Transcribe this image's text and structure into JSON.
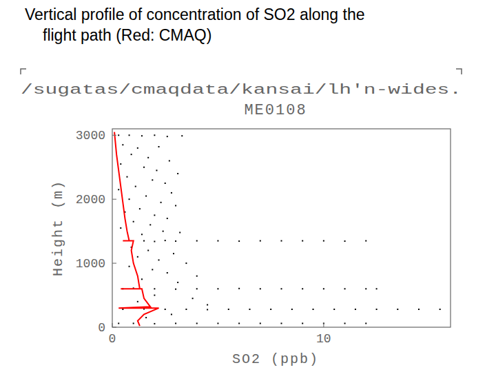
{
  "chart_data": {
    "type": "scatter",
    "title": "Vertical profile of concentration of SO2 along the flight path (Red: CMAQ)",
    "annotations": [
      "/sugatas/cmaqdata/kansai/lh'n-wides.",
      "ME0108"
    ],
    "x_label": "SO2 (ppb)",
    "y_label": "Height (m)",
    "xlim": [
      0,
      16
    ],
    "ylim": [
      0,
      3100
    ],
    "xticks": [
      0,
      10
    ],
    "yticks": [
      0,
      1000,
      2000,
      3000
    ],
    "grid": false,
    "series": [
      {
        "type": "scatter",
        "color": "#000000",
        "marker": "dot",
        "x": [
          1.5,
          2,
          2.5,
          3,
          4,
          5,
          6,
          7,
          8,
          9,
          10,
          11,
          12,
          0.5,
          1,
          2,
          3,
          4,
          5,
          6,
          7,
          8,
          9,
          10,
          11,
          12,
          12.5,
          0.5,
          1.5,
          2.5,
          3.5,
          4.5,
          5.5,
          6.5,
          7.5,
          8.5,
          9.5,
          10.5,
          11.5,
          12.5,
          13.5,
          14.5,
          15.5,
          0.3,
          1,
          2,
          3,
          4,
          5,
          6,
          7,
          8,
          9,
          10,
          11,
          12,
          0.3,
          0.8,
          1.4,
          2,
          2.6,
          3.3,
          0.5,
          1.2,
          2.2,
          0.9,
          1.7,
          2.7,
          0.4,
          1.5,
          2.1,
          3.1,
          0.7,
          1.9,
          2.5,
          1.1,
          0.3,
          2.8,
          1.6,
          0.8,
          2.3,
          3.0,
          1.3,
          0.6,
          2.0,
          2.6,
          1.0,
          1.8,
          0.4,
          2.4,
          1.4,
          3.2,
          0.9,
          1.7,
          2.9,
          1.2,
          2.2,
          3.5,
          0.8,
          1.9,
          2.6,
          4.0,
          1.4,
          3.1,
          2.0,
          3.8,
          1.2,
          4.5,
          2.8,
          1.6
        ],
        "values": [
          1350,
          1340,
          1355,
          1345,
          1350,
          1350,
          1345,
          1350,
          1350,
          1350,
          1350,
          1345,
          1350,
          600,
          610,
          600,
          595,
          600,
          600,
          605,
          600,
          600,
          600,
          600,
          600,
          600,
          600,
          280,
          285,
          280,
          280,
          275,
          280,
          280,
          280,
          280,
          280,
          280,
          280,
          280,
          280,
          280,
          280,
          60,
          60,
          55,
          60,
          60,
          60,
          60,
          60,
          60,
          60,
          60,
          60,
          60,
          3000,
          3000,
          2990,
          3000,
          2980,
          2990,
          2850,
          2800,
          2820,
          2700,
          2650,
          2600,
          2550,
          2500,
          2450,
          2400,
          2350,
          2300,
          2250,
          2200,
          2150,
          2100,
          2050,
          2000,
          1950,
          1900,
          1850,
          1800,
          1750,
          1700,
          1650,
          1600,
          1550,
          1500,
          1450,
          1480,
          1250,
          1200,
          1150,
          1100,
          1050,
          1000,
          950,
          900,
          850,
          800,
          750,
          700,
          500,
          450,
          400,
          350,
          200,
          150
        ]
      },
      {
        "type": "line",
        "color": "#ff0000",
        "line_style": "solid",
        "x": [
          0.1,
          0.2,
          0.4,
          0.5,
          0.6,
          0.7,
          0.8,
          0.5,
          1.0,
          0.9,
          1.0,
          1.2,
          1.3,
          0.4,
          1.4,
          1.5,
          1.8,
          0.3,
          2.2,
          1.5,
          1.2,
          1.3
        ],
        "values": [
          3050,
          2700,
          2200,
          1950,
          1700,
          1500,
          1350,
          1350,
          1350,
          1200,
          1000,
          800,
          600,
          600,
          600,
          450,
          320,
          300,
          300,
          200,
          100,
          20
        ]
      }
    ]
  }
}
